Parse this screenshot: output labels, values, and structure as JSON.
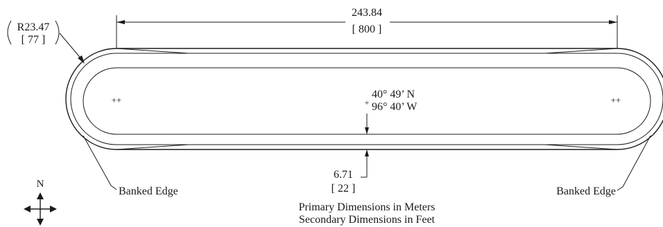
{
  "drawing": {
    "length": {
      "meters": "243.84",
      "feet": "[ 800 ]"
    },
    "radius": {
      "meters": "R23.47",
      "feet": "[ 77 ]"
    },
    "bank_width": {
      "meters": "6.71",
      "feet": "[ 22 ]"
    },
    "coordinates": {
      "latitude": "40° 49’ N",
      "longitude": "96° 40’ W"
    },
    "labels": {
      "banked_edge_left": "Banked Edge",
      "banked_edge_right": "Banked Edge"
    },
    "notes": {
      "primary": "Primary Dimensions in Meters",
      "secondary": "Secondary Dimensions in Feet"
    },
    "compass": {
      "north_label": "N"
    }
  }
}
